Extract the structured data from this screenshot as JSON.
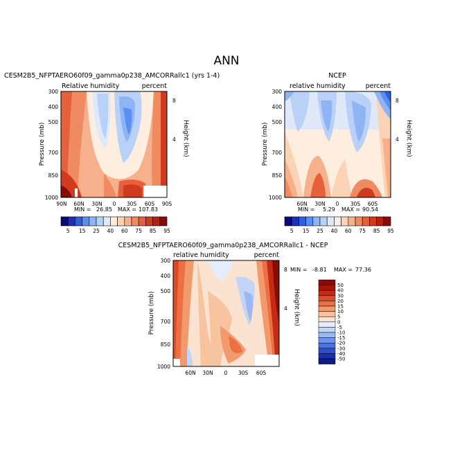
{
  "page_title": "ANN",
  "chart_data": [
    {
      "type": "heatmap",
      "id": "model",
      "title": "CESM2B5_NFPTAERO60f09_gamma0p238_AMCORRallc1 (yrs 1-4)",
      "left_label": "Relative humidity",
      "right_label": "percent",
      "ylabel": "Pressure (mb)",
      "right_axis_label": "Height (km)",
      "x_ticks": [
        "90N",
        "60N",
        "30N",
        "0",
        "30S",
        "60S",
        "90S"
      ],
      "y_ticks": [
        "300",
        "400",
        "500",
        "700",
        "850",
        "1000"
      ],
      "height_ticks": [
        "8",
        "4"
      ],
      "min_label": "MIN =",
      "min_value": "26.85",
      "max_label": "MAX =",
      "max_value": "107.83",
      "colorbar_labels": [
        "5",
        "15",
        "25",
        "40",
        "60",
        "75",
        "85",
        "95"
      ]
    },
    {
      "type": "heatmap",
      "id": "ncep",
      "title": "NCEP",
      "left_label": "relative humidity",
      "right_label": "percent",
      "ylabel": "Pressure (mb)",
      "right_axis_label": "Height (km)",
      "x_ticks": [
        "60N",
        "30N",
        "0",
        "30S",
        "60S"
      ],
      "y_ticks": [
        "300",
        "400",
        "500",
        "700",
        "850",
        "1000"
      ],
      "height_ticks": [
        "8",
        "4"
      ],
      "min_label": "MIN =",
      "min_value": "5.29",
      "max_label": "MAX =",
      "max_value": "90.54",
      "colorbar_labels": [
        "5",
        "15",
        "25",
        "40",
        "60",
        "75",
        "85",
        "95"
      ]
    },
    {
      "type": "heatmap",
      "id": "diff",
      "title": "CESM2B5_NFPTAERO60f09_gamma0p238_AMCORRallc1 - NCEP",
      "left_label": "relative humidity",
      "right_label": "percent",
      "ylabel": "Pressure (mb)",
      "right_axis_label": "Height (km)",
      "x_ticks": [
        "60N",
        "30N",
        "0",
        "30S",
        "60S"
      ],
      "y_ticks": [
        "300",
        "400",
        "500",
        "700",
        "850",
        "1000"
      ],
      "height_ticks": [
        "8",
        "4"
      ],
      "min_label": "MIN =",
      "min_value": "-8.81",
      "max_label": "MAX =",
      "max_value": "77.36",
      "colorbar_labels": [
        "50",
        "40",
        "30",
        "20",
        "15",
        "10",
        "5",
        "0",
        "-5",
        "-10",
        "-15",
        "-20",
        "-30",
        "-40",
        "-50"
      ]
    }
  ],
  "colors": {
    "abs_scale": [
      "#0a0a7a",
      "#1f2fb5",
      "#2e5fe0",
      "#5a8ef0",
      "#8fb4f5",
      "#b9d0f7",
      "#dfe9fa",
      "#fdeee0",
      "#fbd3b5",
      "#f6b08b",
      "#f08a60",
      "#e5603b",
      "#d23a1e",
      "#b5200f",
      "#8a0b05"
    ],
    "diff_scale": [
      "#8a0b05",
      "#a3150a",
      "#c52a14",
      "#dc4a26",
      "#ec7043",
      "#f39a6c",
      "#f8c4a0",
      "#fbe3d2",
      "#e4edfb",
      "#c2d5f6",
      "#9bb8f1",
      "#6f96ea",
      "#4a73df",
      "#2c4fcf",
      "#1a2fb0",
      "#0d1a87"
    ]
  }
}
